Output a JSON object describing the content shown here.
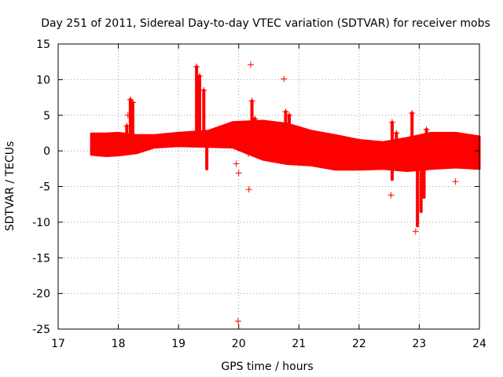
{
  "chart_data": {
    "type": "scatter",
    "title": "Day 251 of 2011, Sidereal Day-to-day VTEC variation (SDTVAR) for receiver mobs",
    "xlabel": "GPS time / hours",
    "ylabel": "SDTVAR / TECUs",
    "xlim": [
      17,
      24
    ],
    "ylim": [
      -25,
      15
    ],
    "x_ticks": [
      17,
      18,
      19,
      20,
      21,
      22,
      23,
      24
    ],
    "y_ticks": [
      15,
      10,
      5,
      0,
      -5,
      -10,
      -15,
      -20,
      -25
    ],
    "x_tick_labels": [
      "17",
      "18",
      "19",
      "20",
      "21",
      "22",
      "23",
      "24"
    ],
    "y_tick_labels": [
      "15",
      "10",
      "5",
      "0",
      "-5",
      "-10",
      "-15",
      "-20",
      "-25"
    ],
    "grid": true,
    "marker": "+",
    "color": "#ff0000",
    "band": {
      "name": "dense SDTVAR band",
      "x": [
        17.55,
        17.8,
        18.0,
        18.3,
        18.6,
        19.0,
        19.5,
        19.9,
        20.4,
        20.8,
        21.2,
        21.6,
        22.0,
        22.4,
        22.8,
        23.2,
        23.6,
        24.0
      ],
      "upper": [
        2.4,
        2.4,
        2.5,
        2.2,
        2.2,
        2.5,
        2.8,
        4.0,
        4.2,
        3.8,
        2.8,
        2.2,
        1.5,
        1.2,
        1.8,
        2.5,
        2.5,
        2.0
      ],
      "lower": [
        -0.5,
        -0.7,
        -0.6,
        -0.3,
        0.5,
        0.7,
        0.6,
        0.5,
        -1.2,
        -1.8,
        -2.0,
        -2.6,
        -2.6,
        -2.5,
        -2.8,
        -2.5,
        -2.3,
        -2.5
      ]
    },
    "spikes": [
      {
        "x": 18.14,
        "y_from": 1.0,
        "y_to": 3.5
      },
      {
        "x": 18.2,
        "y_from": 1.5,
        "y_to": 7.2
      },
      {
        "x": 18.24,
        "y_from": 1.5,
        "y_to": 6.8
      },
      {
        "x": 19.3,
        "y_from": 2.0,
        "y_to": 11.8
      },
      {
        "x": 19.35,
        "y_from": 2.0,
        "y_to": 10.5
      },
      {
        "x": 19.42,
        "y_from": 2.5,
        "y_to": 8.5
      },
      {
        "x": 19.47,
        "y_from": -2.5,
        "y_to": 0.5
      },
      {
        "x": 20.22,
        "y_from": 2.5,
        "y_to": 7.0
      },
      {
        "x": 20.27,
        "y_from": 2.5,
        "y_to": 4.5
      },
      {
        "x": 20.78,
        "y_from": 2.5,
        "y_to": 5.5
      },
      {
        "x": 20.84,
        "y_from": 2.5,
        "y_to": 5.0
      },
      {
        "x": 22.55,
        "y_from": 0.0,
        "y_to": 4.0
      },
      {
        "x": 22.62,
        "y_from": 0.0,
        "y_to": 2.5
      },
      {
        "x": 22.88,
        "y_from": 1.0,
        "y_to": 5.3
      },
      {
        "x": 22.55,
        "y_from": -4.0,
        "y_to": -1.0
      },
      {
        "x": 22.97,
        "y_from": -10.5,
        "y_to": -2.0
      },
      {
        "x": 23.03,
        "y_from": -8.5,
        "y_to": -2.0
      },
      {
        "x": 23.08,
        "y_from": -6.5,
        "y_to": -2.0
      },
      {
        "x": 23.12,
        "y_from": 0.5,
        "y_to": 3.0
      }
    ],
    "outliers": [
      {
        "x": 20.2,
        "y": 12.1
      },
      {
        "x": 20.75,
        "y": 10.1
      },
      {
        "x": 19.96,
        "y": -1.8
      },
      {
        "x": 20.0,
        "y": -3.1
      },
      {
        "x": 20.17,
        "y": -5.4
      },
      {
        "x": 19.99,
        "y": -23.9
      },
      {
        "x": 22.53,
        "y": -6.2
      },
      {
        "x": 22.94,
        "y": -11.3
      },
      {
        "x": 23.6,
        "y": -4.3
      },
      {
        "x": 18.16,
        "y": 5.0
      },
      {
        "x": 20.16,
        "y": -0.4
      }
    ]
  }
}
